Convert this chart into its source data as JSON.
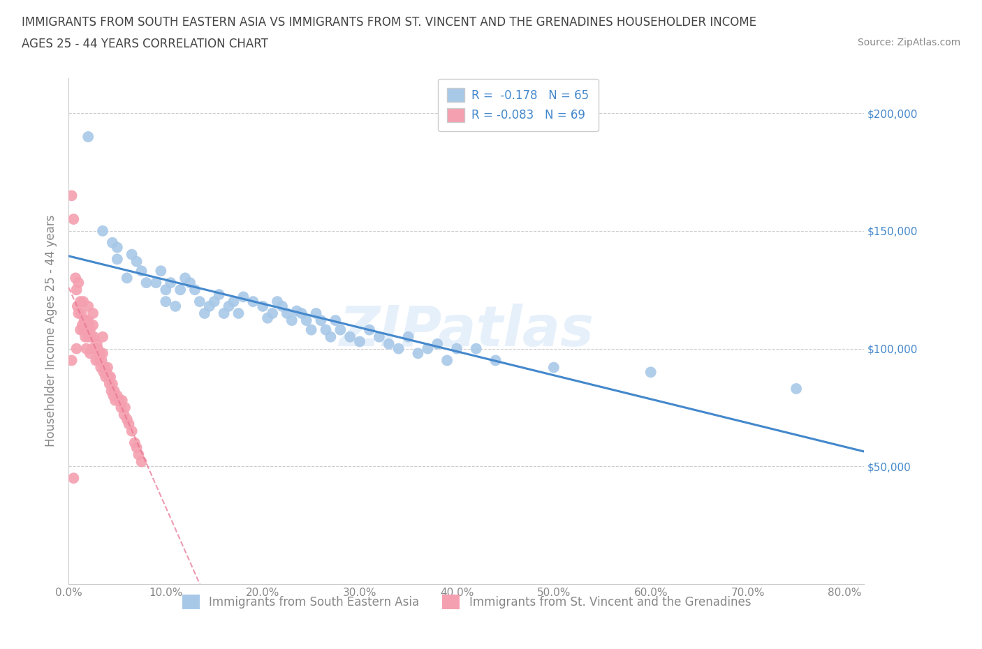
{
  "title_line1": "IMMIGRANTS FROM SOUTH EASTERN ASIA VS IMMIGRANTS FROM ST. VINCENT AND THE GRENADINES HOUSEHOLDER INCOME",
  "title_line2": "AGES 25 - 44 YEARS CORRELATION CHART",
  "source_text": "Source: ZipAtlas.com",
  "ylabel": "Householder Income Ages 25 - 44 years",
  "xlim": [
    0.0,
    0.82
  ],
  "ylim": [
    0,
    215000
  ],
  "xticks": [
    0.0,
    0.1,
    0.2,
    0.3,
    0.4,
    0.5,
    0.6,
    0.7,
    0.8
  ],
  "xticklabels": [
    "0.0%",
    "10.0%",
    "20.0%",
    "30.0%",
    "40.0%",
    "50.0%",
    "60.0%",
    "70.0%",
    "80.0%"
  ],
  "ytick_vals": [
    50000,
    100000,
    150000,
    200000
  ],
  "yticklabels_right": [
    "$50,000",
    "$100,000",
    "$150,000",
    "$200,000"
  ],
  "hlines": [
    50000,
    100000,
    150000,
    200000
  ],
  "blue_color": "#a8c8e8",
  "pink_color": "#f4a0b0",
  "blue_line_color": "#4488cc",
  "pink_line_color": "#e87090",
  "legend_blue_label": "R =  -0.178   N = 65",
  "legend_pink_label": "R = -0.083   N = 69",
  "bottom_legend_blue": "Immigrants from South Eastern Asia",
  "bottom_legend_pink": "Immigrants from St. Vincent and the Grenadines",
  "watermark": "ZIPatlas",
  "blue_x": [
    0.02,
    0.035,
    0.045,
    0.05,
    0.05,
    0.06,
    0.065,
    0.07,
    0.075,
    0.08,
    0.09,
    0.095,
    0.1,
    0.1,
    0.105,
    0.11,
    0.115,
    0.12,
    0.125,
    0.13,
    0.135,
    0.14,
    0.145,
    0.15,
    0.155,
    0.16,
    0.165,
    0.17,
    0.175,
    0.18,
    0.19,
    0.2,
    0.205,
    0.21,
    0.215,
    0.22,
    0.225,
    0.23,
    0.235,
    0.24,
    0.245,
    0.25,
    0.255,
    0.26,
    0.265,
    0.27,
    0.275,
    0.28,
    0.29,
    0.3,
    0.31,
    0.32,
    0.33,
    0.34,
    0.35,
    0.36,
    0.37,
    0.38,
    0.39,
    0.4,
    0.42,
    0.44,
    0.5,
    0.6,
    0.75
  ],
  "blue_y": [
    190000,
    150000,
    145000,
    143000,
    138000,
    130000,
    140000,
    137000,
    133000,
    128000,
    128000,
    133000,
    125000,
    120000,
    128000,
    118000,
    125000,
    130000,
    128000,
    125000,
    120000,
    115000,
    118000,
    120000,
    123000,
    115000,
    118000,
    120000,
    115000,
    122000,
    120000,
    118000,
    113000,
    115000,
    120000,
    118000,
    115000,
    112000,
    116000,
    115000,
    112000,
    108000,
    115000,
    112000,
    108000,
    105000,
    112000,
    108000,
    105000,
    103000,
    108000,
    105000,
    102000,
    100000,
    105000,
    98000,
    100000,
    102000,
    95000,
    100000,
    100000,
    95000,
    92000,
    90000,
    83000
  ],
  "pink_x": [
    0.003,
    0.005,
    0.007,
    0.008,
    0.009,
    0.01,
    0.01,
    0.012,
    0.012,
    0.013,
    0.014,
    0.015,
    0.015,
    0.016,
    0.017,
    0.018,
    0.018,
    0.019,
    0.02,
    0.02,
    0.021,
    0.022,
    0.022,
    0.023,
    0.024,
    0.025,
    0.026,
    0.027,
    0.028,
    0.029,
    0.03,
    0.031,
    0.032,
    0.033,
    0.034,
    0.035,
    0.036,
    0.037,
    0.038,
    0.039,
    0.04,
    0.041,
    0.042,
    0.043,
    0.044,
    0.045,
    0.046,
    0.047,
    0.048,
    0.05,
    0.052,
    0.054,
    0.055,
    0.057,
    0.058,
    0.06,
    0.062,
    0.065,
    0.068,
    0.07,
    0.072,
    0.075,
    0.005,
    0.008,
    0.003,
    0.025,
    0.035,
    0.02,
    0.018
  ],
  "pink_y": [
    165000,
    155000,
    130000,
    125000,
    118000,
    128000,
    115000,
    120000,
    108000,
    115000,
    110000,
    120000,
    108000,
    112000,
    105000,
    112000,
    100000,
    108000,
    118000,
    105000,
    110000,
    108000,
    98000,
    105000,
    100000,
    110000,
    105000,
    100000,
    95000,
    102000,
    100000,
    95000,
    98000,
    92000,
    95000,
    98000,
    90000,
    92000,
    88000,
    90000,
    92000,
    88000,
    85000,
    88000,
    82000,
    85000,
    80000,
    82000,
    78000,
    80000,
    78000,
    75000,
    78000,
    72000,
    75000,
    70000,
    68000,
    65000,
    60000,
    58000,
    55000,
    52000,
    45000,
    100000,
    95000,
    115000,
    105000,
    112000,
    108000
  ]
}
